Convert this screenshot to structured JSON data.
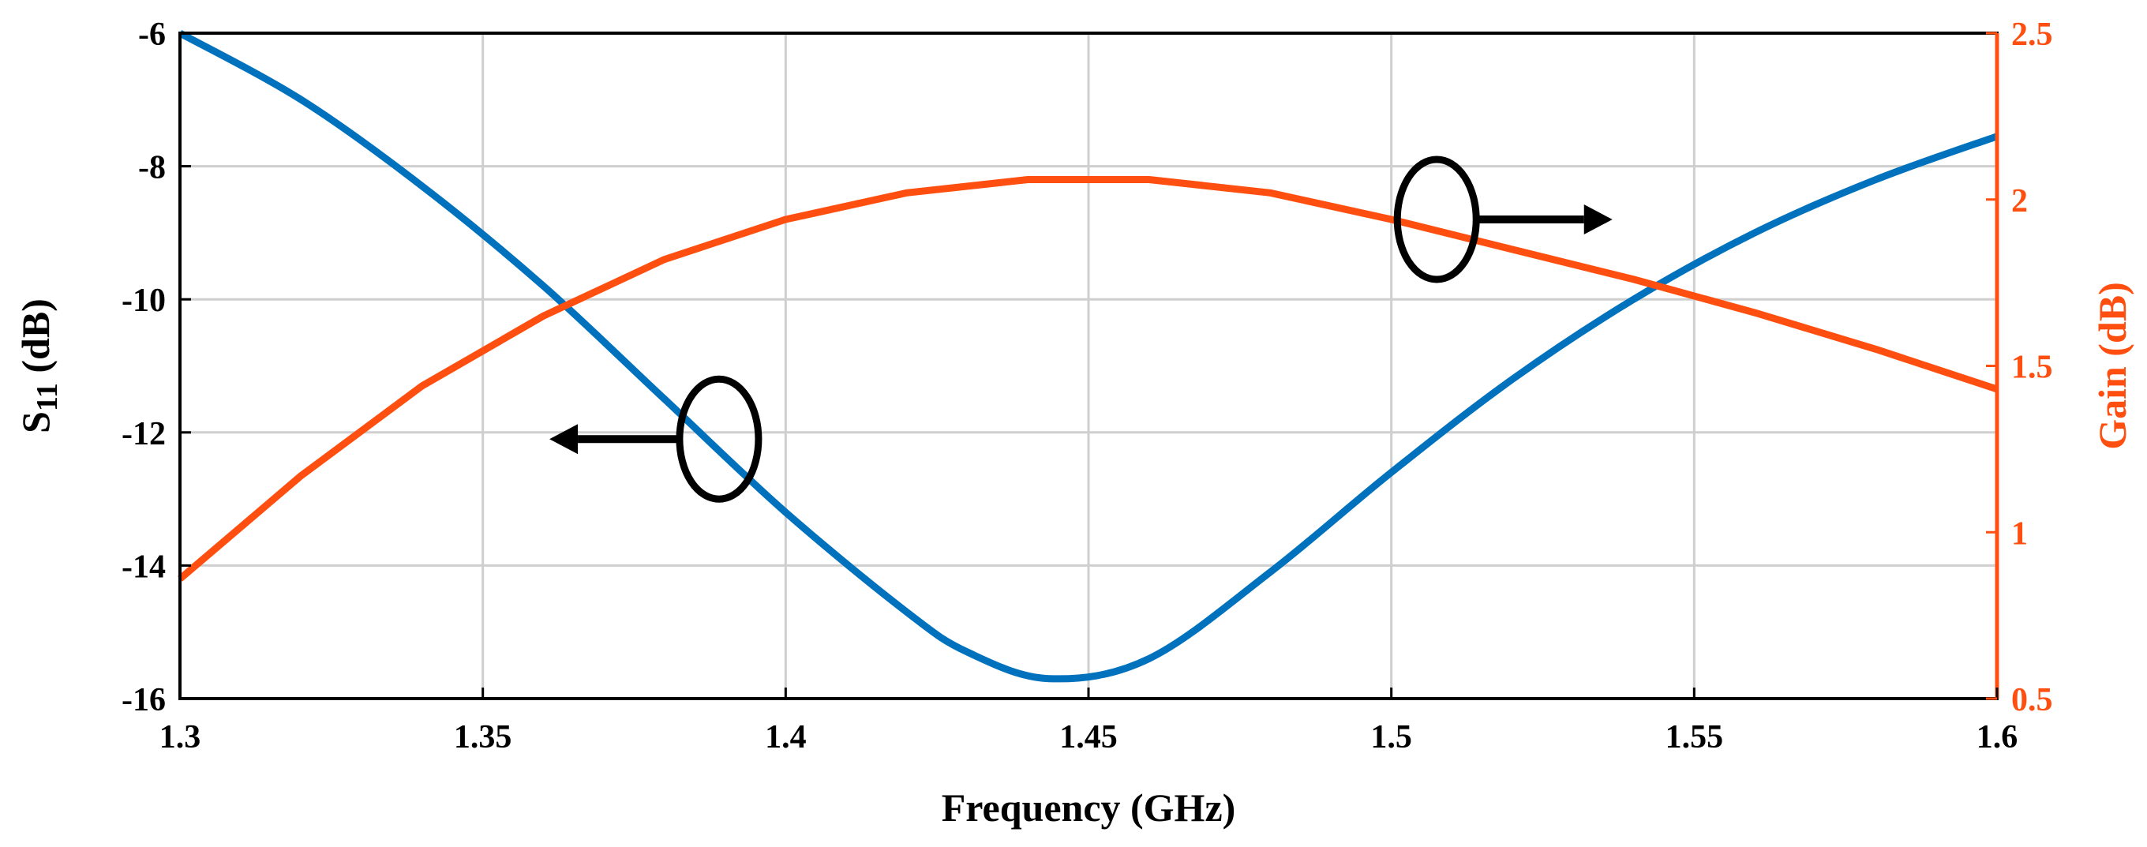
{
  "chart_data": {
    "type": "line",
    "title": "",
    "xlabel": "Frequency (GHz)",
    "ylabel_left_main": "S",
    "ylabel_left_sub": "11",
    "ylabel_left_suffix": " (dB)",
    "ylabel_right": "Gain (dB)",
    "xlim": [
      1.3,
      1.6
    ],
    "ylim_left": [
      -16,
      -6
    ],
    "ylim_right": [
      0.5,
      2.5
    ],
    "x_ticks": [
      "1.3",
      "1.35",
      "1.4",
      "1.45",
      "1.5",
      "1.55",
      "1.6"
    ],
    "y_left_ticks": [
      "-6",
      "-8",
      "-10",
      "-12",
      "-14",
      "-16"
    ],
    "y_right_ticks": [
      "2.5",
      "2",
      "1.5",
      "1",
      "0.5"
    ],
    "grid": true,
    "colors": {
      "s11": "#0072BD",
      "gain": "#FF4F10",
      "right_axis": "#FF4F10",
      "annotation": "#000000"
    },
    "series": [
      {
        "name": "S11",
        "axis": "left",
        "x": [
          1.3,
          1.32,
          1.34,
          1.36,
          1.38,
          1.4,
          1.42,
          1.43,
          1.4435,
          1.46,
          1.48,
          1.5,
          1.52,
          1.54,
          1.56,
          1.58,
          1.6
        ],
        "y": [
          -6.0,
          -7.0,
          -8.3,
          -9.8,
          -11.5,
          -13.2,
          -14.7,
          -15.3,
          -15.7,
          -15.4,
          -14.1,
          -12.6,
          -11.2,
          -10.0,
          -9.0,
          -8.2,
          -7.55
        ]
      },
      {
        "name": "Gain",
        "axis": "right",
        "x": [
          1.3,
          1.32,
          1.34,
          1.36,
          1.38,
          1.4,
          1.42,
          1.44,
          1.46,
          1.48,
          1.5,
          1.52,
          1.54,
          1.56,
          1.58,
          1.6
        ],
        "y": [
          0.86,
          1.17,
          1.44,
          1.65,
          1.82,
          1.94,
          2.02,
          2.06,
          2.06,
          2.02,
          1.94,
          1.85,
          1.76,
          1.66,
          1.55,
          1.43
        ]
      }
    ],
    "annotations": [
      {
        "name": "s11-marker",
        "x": 1.389,
        "y": -12.1,
        "axis": "left",
        "arrow": "left",
        "arrow_to_x": 1.361
      },
      {
        "name": "gain-marker",
        "x": 1.5075,
        "y": 1.94,
        "axis": "right",
        "arrow": "right",
        "arrow_to_x": 1.5365
      }
    ]
  }
}
